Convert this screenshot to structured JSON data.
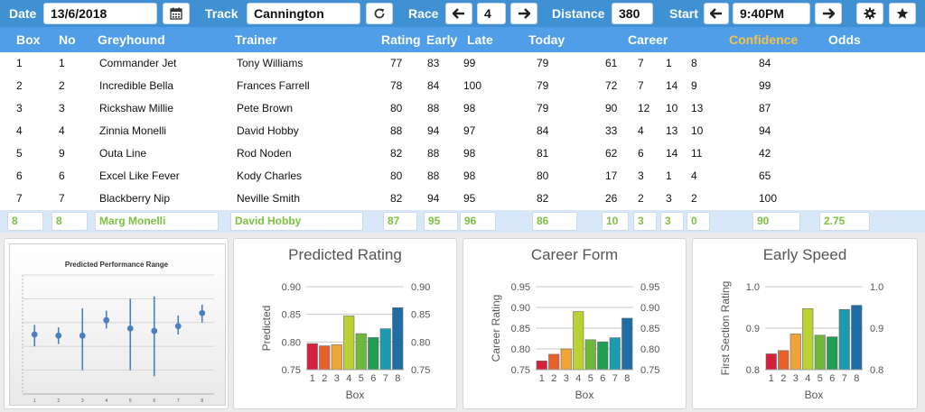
{
  "toolbar": {
    "date_label": "Date",
    "date_value": "13/6/2018",
    "track_label": "Track",
    "track_value": "Cannington",
    "race_label": "Race",
    "race_value": "4",
    "distance_label": "Distance",
    "distance_value": "380",
    "start_label": "Start",
    "start_value": "9:40PM",
    "icons": [
      "calendar-icon",
      "refresh-icon",
      "arrow-left-icon",
      "arrow-right-icon",
      "gear-icon",
      "star-icon"
    ]
  },
  "table": {
    "headers": {
      "box": "Box",
      "no": "No",
      "greyhound": "Greyhound",
      "trainer": "Trainer",
      "rating": "Rating",
      "early": "Early",
      "late": "Late",
      "today": "Today",
      "career": "Career",
      "confidence": "Confidence",
      "odds": "Odds"
    },
    "rows": [
      {
        "box": "1",
        "no": "1",
        "greyhound": "Commander Jet",
        "trainer": "Tony Williams",
        "rating": "77",
        "early": "83",
        "late": "99",
        "today": "79",
        "c1": "61",
        "c2": "7",
        "c3": "1",
        "c4": "8",
        "confidence": "84"
      },
      {
        "box": "2",
        "no": "2",
        "greyhound": "Incredible Bella",
        "trainer": "Frances Farrell",
        "rating": "78",
        "early": "84",
        "late": "100",
        "today": "79",
        "c1": "72",
        "c2": "7",
        "c3": "14",
        "c4": "9",
        "confidence": "99"
      },
      {
        "box": "3",
        "no": "3",
        "greyhound": "Rickshaw Millie",
        "trainer": "Pete Brown",
        "rating": "80",
        "early": "88",
        "late": "98",
        "today": "79",
        "c1": "90",
        "c2": "12",
        "c3": "10",
        "c4": "13",
        "confidence": "87"
      },
      {
        "box": "4",
        "no": "4",
        "greyhound": "Zinnia Monelli",
        "trainer": "David Hobby",
        "rating": "88",
        "early": "94",
        "late": "97",
        "today": "84",
        "c1": "33",
        "c2": "4",
        "c3": "13",
        "c4": "10",
        "confidence": "94"
      },
      {
        "box": "5",
        "no": "9",
        "greyhound": "Outa Line",
        "trainer": "Rod Noden",
        "rating": "82",
        "early": "88",
        "late": "98",
        "today": "81",
        "c1": "62",
        "c2": "6",
        "c3": "14",
        "c4": "11",
        "confidence": "42"
      },
      {
        "box": "6",
        "no": "6",
        "greyhound": "Excel Like Fever",
        "trainer": "Kody Charles",
        "rating": "80",
        "early": "88",
        "late": "98",
        "today": "80",
        "c1": "17",
        "c2": "3",
        "c3": "1",
        "c4": "4",
        "confidence": "65"
      },
      {
        "box": "7",
        "no": "7",
        "greyhound": "Blackberry Nip",
        "trainer": "Neville Smith",
        "rating": "82",
        "early": "94",
        "late": "95",
        "today": "82",
        "c1": "26",
        "c2": "2",
        "c3": "3",
        "c4": "2",
        "confidence": "100"
      }
    ],
    "selected": {
      "box": "8",
      "no": "8",
      "greyhound": "Marg Monelli",
      "trainer": "David Hobby",
      "rating": "87",
      "early": "95",
      "late": "96",
      "today": "86",
      "c1": "10",
      "c2": "3",
      "c3": "3",
      "c4": "0",
      "confidence": "90",
      "odds": "2.75"
    }
  },
  "chart_data": [
    {
      "type": "scatter",
      "title": "Predicted Performance Range",
      "x": [
        1,
        2,
        3,
        4,
        5,
        6,
        7,
        8
      ],
      "y": [
        0.5,
        0.49,
        0.49,
        0.62,
        0.55,
        0.53,
        0.57,
        0.68
      ],
      "low": [
        0.4,
        0.42,
        0.2,
        0.55,
        0.2,
        0.15,
        0.5,
        0.6
      ],
      "high": [
        0.58,
        0.56,
        0.72,
        0.7,
        0.8,
        0.82,
        0.66,
        0.75
      ],
      "ylim": [
        0,
        1
      ],
      "grid": true,
      "color": "#4a7fc0"
    },
    {
      "type": "bar",
      "title": "Predicted Rating",
      "categories": [
        "1",
        "2",
        "3",
        "4",
        "5",
        "6",
        "7",
        "8"
      ],
      "values": [
        0.797,
        0.793,
        0.795,
        0.847,
        0.815,
        0.808,
        0.824,
        0.862
      ],
      "xlabel": "Box",
      "ylabel": "Predicted",
      "ylim": [
        0.75,
        0.9
      ],
      "yticks": [
        "0.75",
        "0.80",
        "0.85",
        "0.90"
      ],
      "grid": true,
      "colors": [
        "#d61f3c",
        "#e8602a",
        "#f0a437",
        "#bcd233",
        "#6fb83a",
        "#1f9e54",
        "#1c9bb0",
        "#1e6ea3"
      ]
    },
    {
      "type": "bar",
      "title": "Career Form",
      "categories": [
        "1",
        "2",
        "3",
        "4",
        "5",
        "6",
        "7",
        "8"
      ],
      "values": [
        0.771,
        0.787,
        0.8,
        0.89,
        0.822,
        0.817,
        0.827,
        0.874
      ],
      "xlabel": "Box",
      "ylabel": "Career Rating",
      "ylim": [
        0.75,
        0.95
      ],
      "yticks": [
        "0.75",
        "0.80",
        "0.85",
        "0.90",
        "0.95"
      ],
      "grid": true,
      "colors": [
        "#d61f3c",
        "#e8602a",
        "#f0a437",
        "#bcd233",
        "#6fb83a",
        "#1f9e54",
        "#1c9bb0",
        "#1e6ea3"
      ]
    },
    {
      "type": "bar",
      "title": "Early Speed",
      "categories": [
        "1",
        "2",
        "3",
        "4",
        "5",
        "6",
        "7",
        "8"
      ],
      "values": [
        0.838,
        0.846,
        0.886,
        0.947,
        0.883,
        0.879,
        0.945,
        0.955
      ],
      "xlabel": "Box",
      "ylabel": "First Section Rating",
      "ylim": [
        0.8,
        1.0
      ],
      "yticks": [
        "0.8",
        "0.9",
        "1.0"
      ],
      "grid": true,
      "colors": [
        "#d61f3c",
        "#e8602a",
        "#f0a437",
        "#bcd233",
        "#6fb83a",
        "#1f9e54",
        "#1c9bb0",
        "#1e6ea3"
      ]
    }
  ]
}
